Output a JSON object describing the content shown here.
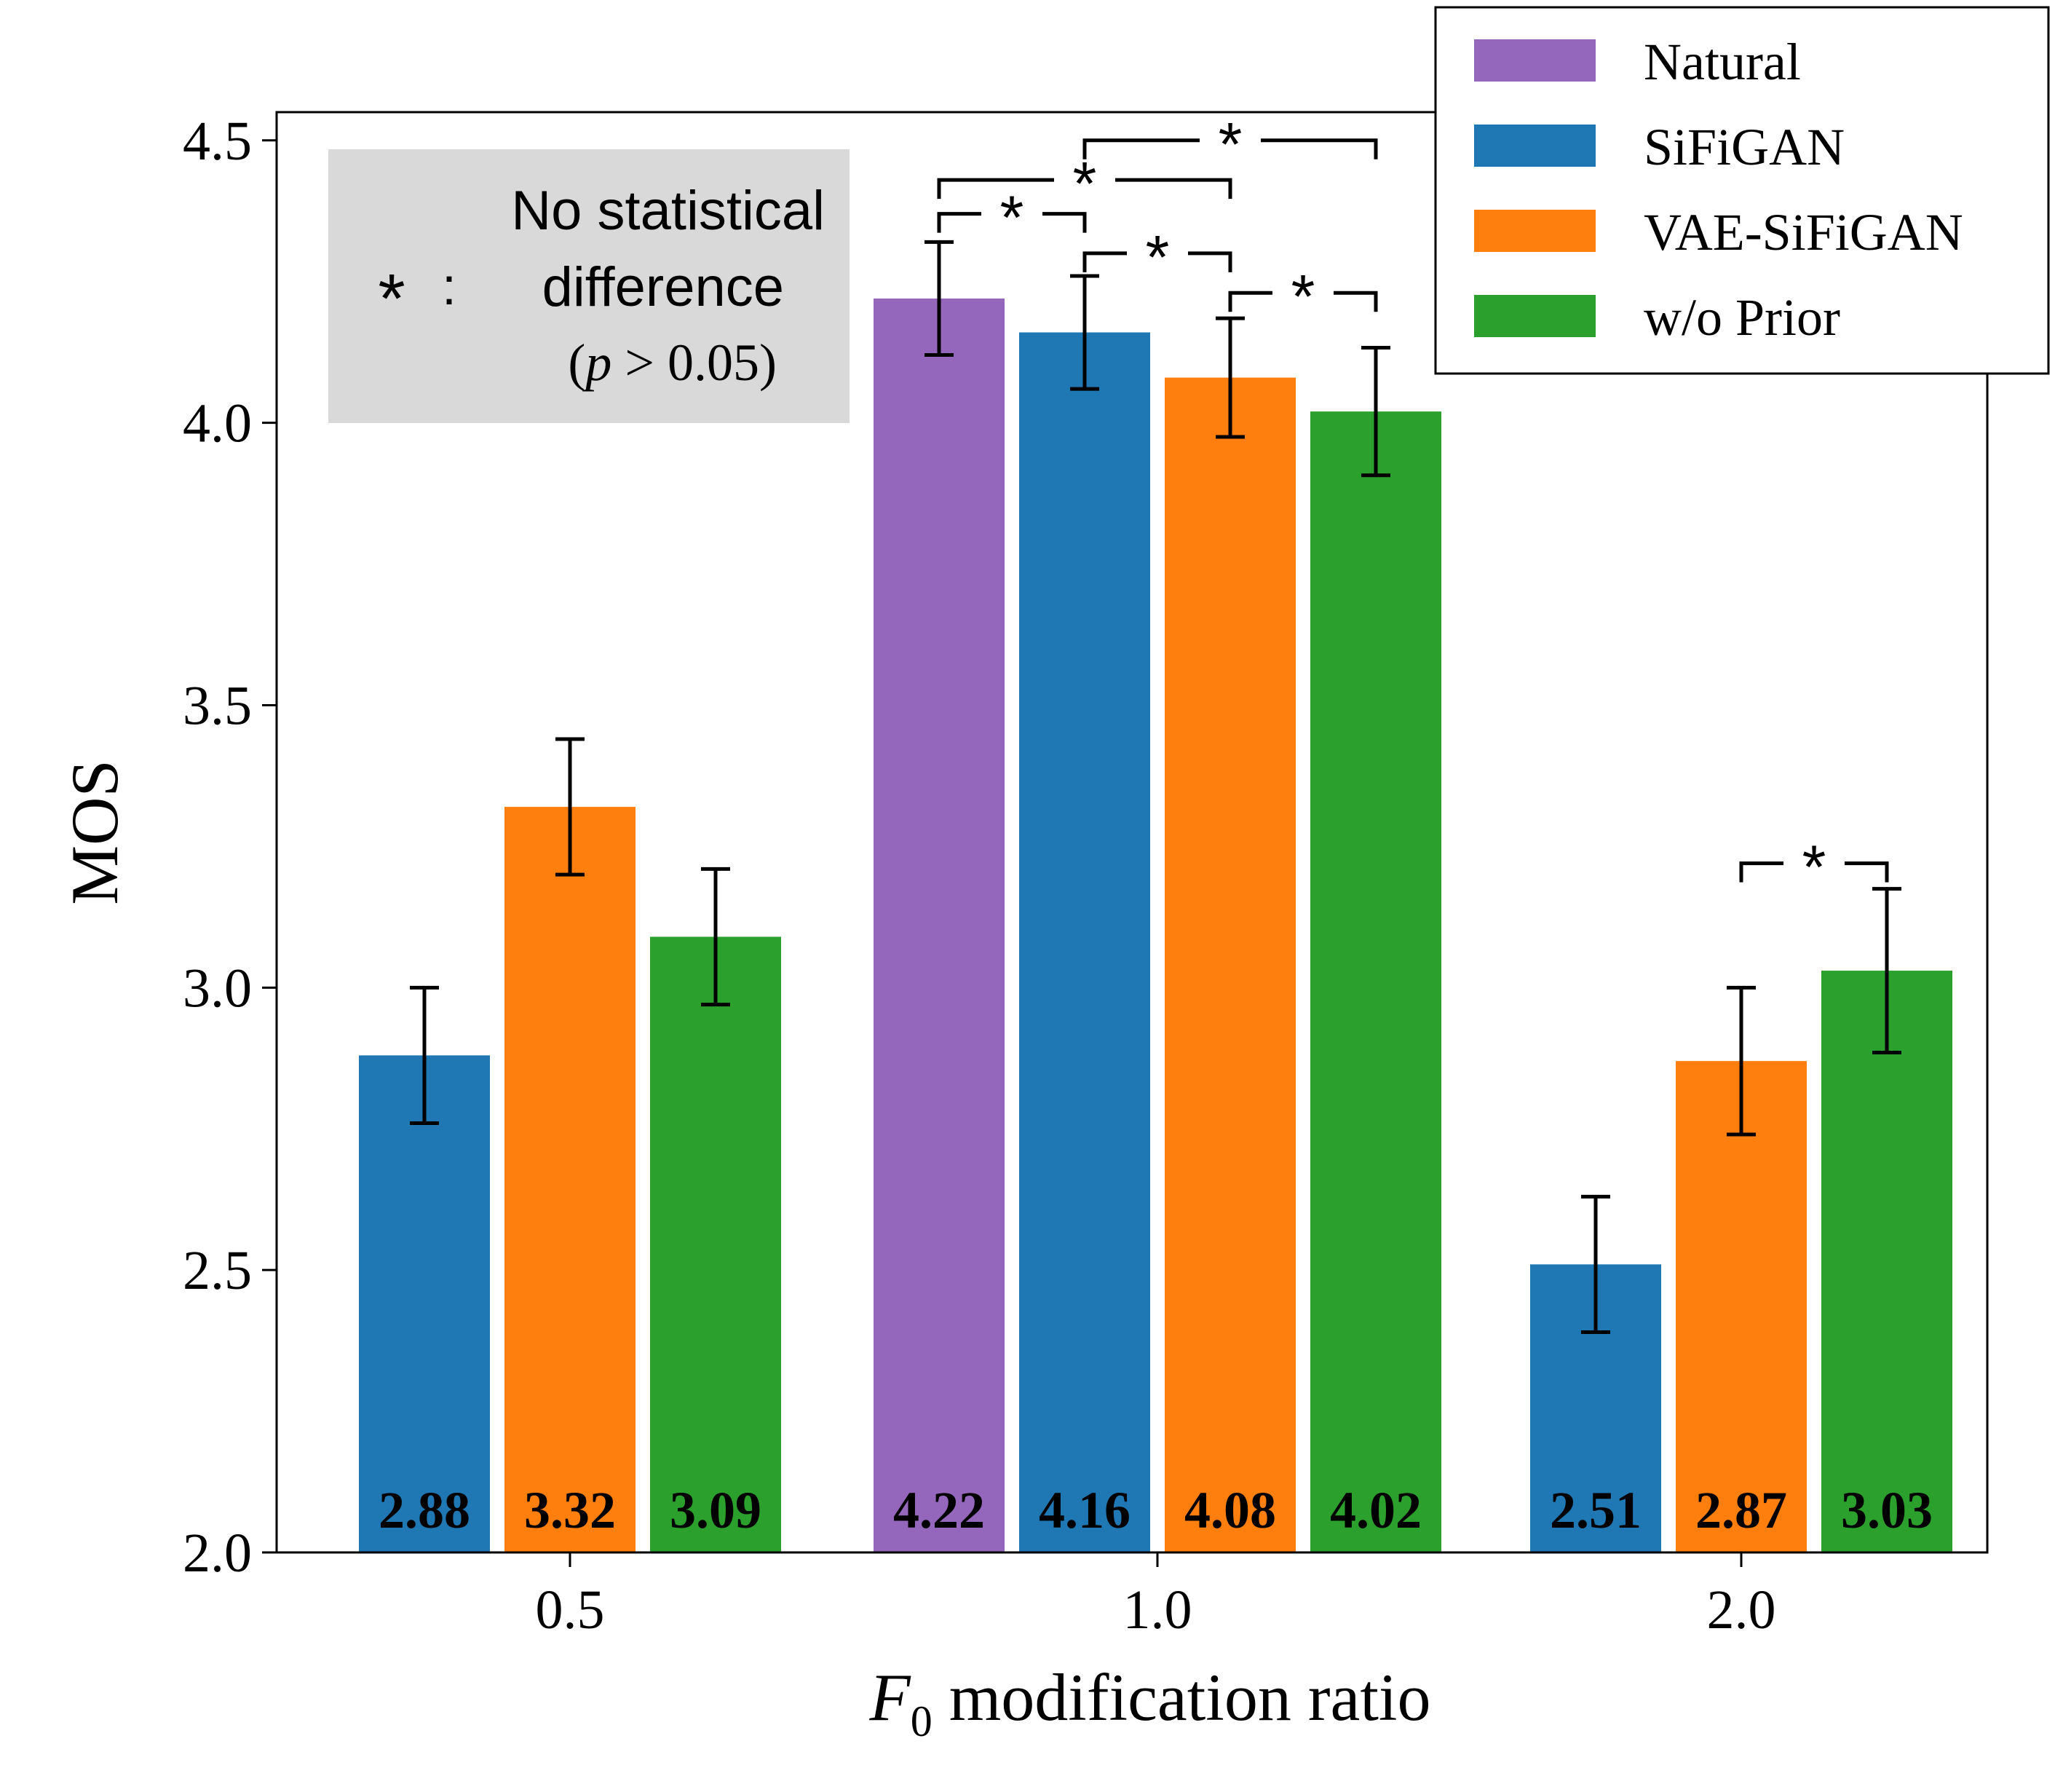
{
  "chart_data": {
    "type": "bar",
    "xlabel_symbol": "F",
    "xlabel_subscript": "0",
    "xlabel_rest": " modification ratio",
    "ylabel": "MOS",
    "ylim": [
      2.0,
      4.5
    ],
    "yticks": [
      "2.0",
      "2.5",
      "3.0",
      "3.5",
      "4.0",
      "4.5"
    ],
    "categories": [
      "0.5",
      "1.0",
      "2.0"
    ],
    "legend_position": "top-right",
    "series": [
      {
        "name": "Natural",
        "color": "#9467bd",
        "values": [
          null,
          4.22,
          null
        ],
        "errors": [
          null,
          0.1,
          null
        ],
        "labels": [
          "",
          "4.22",
          ""
        ]
      },
      {
        "name": "SiFiGAN",
        "color": "#1f77b4",
        "values": [
          2.88,
          4.16,
          2.51
        ],
        "errors": [
          0.12,
          0.1,
          0.12
        ],
        "labels": [
          "2.88",
          "4.16",
          "2.51"
        ]
      },
      {
        "name": "VAE-SiFiGAN",
        "color": "#ff7f0e",
        "values": [
          3.32,
          4.08,
          2.87
        ],
        "errors": [
          0.12,
          0.105,
          0.13
        ],
        "labels": [
          "3.32",
          "4.08",
          "2.87"
        ]
      },
      {
        "name": "w/o Prior",
        "color": "#2ca02c",
        "values": [
          3.09,
          4.02,
          3.03
        ],
        "errors": [
          0.12,
          0.113,
          0.145
        ],
        "labels": [
          "3.09",
          "4.02",
          "3.03"
        ]
      }
    ],
    "significance_brackets": [
      {
        "category": 1,
        "from_series": 0,
        "to_series": 1,
        "y": 4.37,
        "mark": "*"
      },
      {
        "category": 1,
        "from_series": 0,
        "to_series": 2,
        "y": 4.43,
        "mark": "*"
      },
      {
        "category": 1,
        "from_series": 1,
        "to_series": 2,
        "y": 4.3,
        "mark": "*"
      },
      {
        "category": 1,
        "from_series": 1,
        "to_series": 3,
        "y": 4.5,
        "mark": "*"
      },
      {
        "category": 1,
        "from_series": 2,
        "to_series": 3,
        "y": 4.23,
        "mark": "*"
      },
      {
        "category": 2,
        "from_series": 2,
        "to_series": 3,
        "y": 3.22,
        "mark": "*"
      }
    ],
    "annotation": {
      "symbol": "*",
      "colon": ":",
      "line1": "No statistical",
      "line2": "difference",
      "line3_open": "(",
      "line3_var": "p",
      "line3_rest": " > 0.05)"
    }
  }
}
